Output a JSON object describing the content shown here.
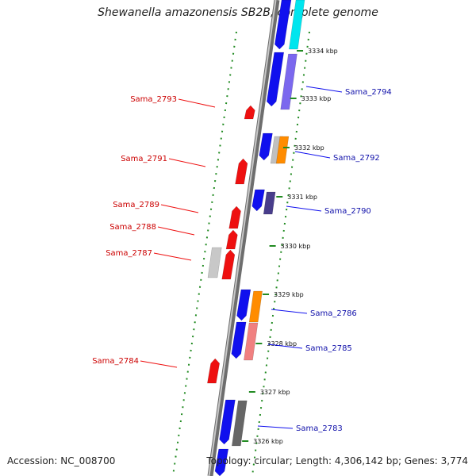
{
  "title": "Shewanella amazonensis SB2B, complete genome",
  "footer": {
    "accession": "Accession: NC_008700",
    "topology": "Topology: circular; Length: 4,306,142 bp; Genes: 3,774"
  },
  "colors": {
    "forward_gene": "#1010ee",
    "reverse_gene": "#ee1010",
    "backbone": "#888888",
    "gc_dots": "#228b22"
  },
  "ticks": [
    {
      "label": "3334 kbp"
    },
    {
      "label": "3333 kbp"
    },
    {
      "label": "3332 kbp"
    },
    {
      "label": "3331 kbp"
    },
    {
      "label": "3330 kbp"
    },
    {
      "label": "3329 kbp"
    },
    {
      "label": "3328 kbp"
    },
    {
      "label": "3327 kbp"
    },
    {
      "label": "3326 kbp"
    }
  ],
  "genes_right": [
    {
      "label": "Sama_2794",
      "cat_color": "#7b68ee"
    },
    {
      "label": "Sama_2792",
      "cat_color": "#ff8c00"
    },
    {
      "label": "Sama_2790",
      "cat_color": "#483d8b"
    },
    {
      "label": "Sama_2786",
      "cat_color": "#ff8c00"
    },
    {
      "label": "Sama_2785",
      "cat_color": "#f08080"
    },
    {
      "label": "Sama_2783",
      "cat_color": "#666666"
    }
  ],
  "genes_left": [
    {
      "label": "Sama_2793"
    },
    {
      "label": "Sama_2791"
    },
    {
      "label": "Sama_2789"
    },
    {
      "label": "Sama_2788"
    },
    {
      "label": "Sama_2787"
    },
    {
      "label": "Sama_2784"
    }
  ]
}
